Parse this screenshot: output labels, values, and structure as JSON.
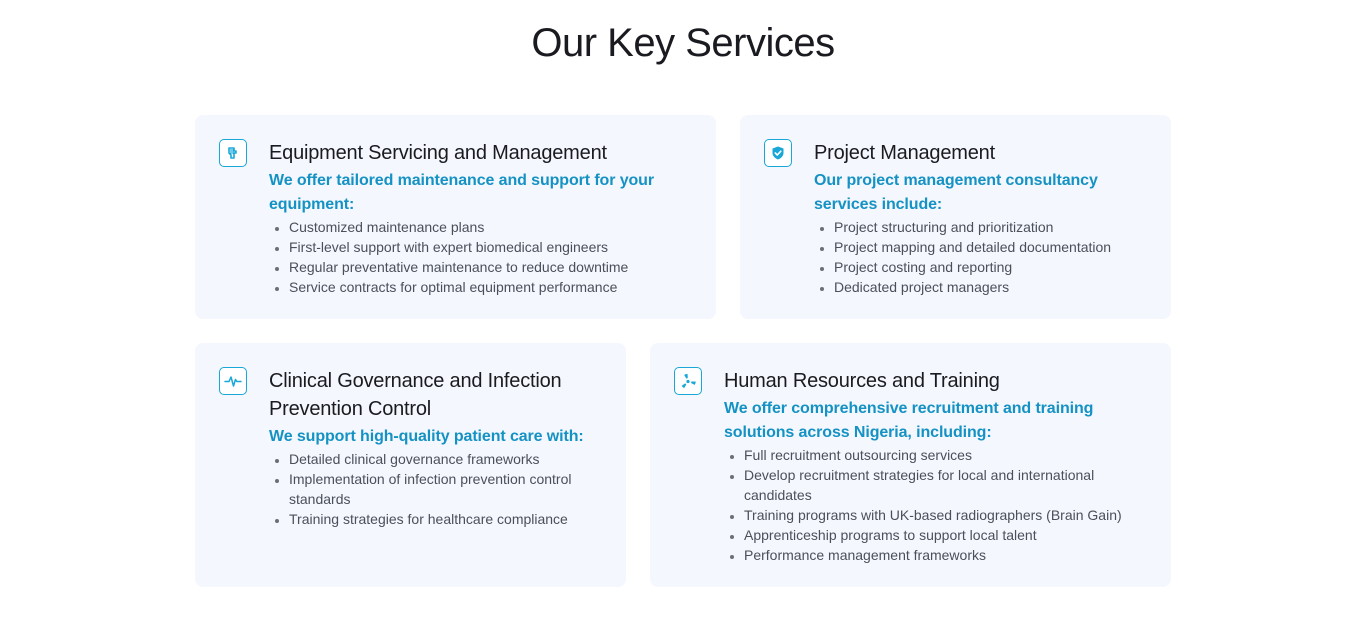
{
  "section": {
    "title": "Our Key Services"
  },
  "services": [
    {
      "icon": "hand-wrench-icon",
      "title": "Equipment Servicing and Management",
      "intro": "We offer tailored maintenance and support for your equipment:",
      "items": [
        "Customized maintenance plans",
        "First-level support with expert biomedical engineers",
        "Regular preventative maintenance to reduce downtime",
        "Service contracts for optimal equipment performance"
      ]
    },
    {
      "icon": "shield-check-icon",
      "title": "Project Management",
      "intro": "Our project management consultancy services include:",
      "items": [
        "Project structuring and prioritization",
        "Project mapping and detailed documentation",
        "Project costing and reporting",
        "Dedicated project managers"
      ]
    },
    {
      "icon": "heartbeat-icon",
      "title": "Clinical Governance and Infection Prevention Control",
      "intro": "We support high-quality patient care with:",
      "items": [
        "Detailed clinical governance frameworks",
        "Implementation of infection prevention control standards",
        "Training strategies for healthcare compliance"
      ]
    },
    {
      "icon": "radiation-icon",
      "title": "Human Resources and Training",
      "intro": "We offer comprehensive recruitment and training solutions across Nigeria, including:",
      "items": [
        "Full recruitment outsourcing services",
        "Develop recruitment strategies for local and international candidates",
        "Training programs with UK-based radiographers (Brain Gain)",
        "Apprenticeship programs to support local talent",
        "Performance management frameworks"
      ]
    }
  ],
  "colors": {
    "accent": "#1592c4",
    "icon_border": "#19a7d8",
    "card_bg": "#f4f7fd"
  }
}
